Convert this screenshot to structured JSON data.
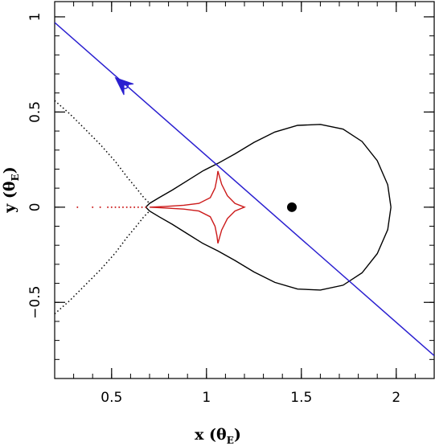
{
  "chart_data": {
    "type": "line",
    "xlabel": {
      "main": "x (θ",
      "sub": "E",
      "close": ")"
    },
    "ylabel": {
      "main": "y (θ",
      "sub": "E",
      "close": ")"
    },
    "xlim": [
      0.2,
      2.2
    ],
    "ylim": [
      -0.9,
      1.08
    ],
    "x_ticks": [
      {
        "value": 0.5,
        "label": "0.5"
      },
      {
        "value": 1,
        "label": "1"
      },
      {
        "value": 1.5,
        "label": "1.5"
      },
      {
        "value": 2,
        "label": "2"
      }
    ],
    "y_ticks": [
      {
        "value": -0.5,
        "label": "−0.5"
      },
      {
        "value": 0,
        "label": "0"
      },
      {
        "value": 0.5,
        "label": "0.5"
      },
      {
        "value": 1,
        "label": "1"
      }
    ],
    "x_minor_step": 0.1,
    "y_minor_step": 0.1,
    "source_trajectory": {
      "color": "#2a1fd0",
      "start": [
        0.2,
        0.97
      ],
      "end": [
        2.2,
        -0.78
      ],
      "marker_position": [
        0.57,
        0.64
      ],
      "arrow_tip": [
        0.52,
        0.68
      ]
    },
    "lens_point": {
      "x": 1.45,
      "y": 0.0,
      "color": "#000000"
    },
    "critical_curve": {
      "color": "#000000",
      "points": [
        [
          1.972,
          0.0
        ],
        [
          1.955,
          0.118
        ],
        [
          1.9,
          0.244
        ],
        [
          1.82,
          0.345
        ],
        [
          1.72,
          0.41
        ],
        [
          1.6,
          0.435
        ],
        [
          1.48,
          0.43
        ],
        [
          1.36,
          0.395
        ],
        [
          1.25,
          0.34
        ],
        [
          1.15,
          0.28
        ],
        [
          1.06,
          0.23
        ],
        [
          0.98,
          0.19
        ],
        [
          0.9,
          0.14
        ],
        [
          0.82,
          0.09
        ],
        [
          0.75,
          0.05
        ],
        [
          0.7,
          0.02
        ],
        [
          0.68,
          0.0
        ],
        [
          0.7,
          -0.02
        ],
        [
          0.75,
          -0.05
        ],
        [
          0.82,
          -0.09
        ],
        [
          0.9,
          -0.14
        ],
        [
          0.98,
          -0.19
        ],
        [
          1.06,
          -0.23
        ],
        [
          1.15,
          -0.28
        ],
        [
          1.25,
          -0.34
        ],
        [
          1.36,
          -0.395
        ],
        [
          1.48,
          -0.43
        ],
        [
          1.6,
          -0.435
        ],
        [
          1.72,
          -0.41
        ],
        [
          1.82,
          -0.345
        ],
        [
          1.9,
          -0.244
        ],
        [
          1.955,
          -0.118
        ],
        [
          1.972,
          0.0
        ]
      ],
      "outer_upper": [
        [
          0.2,
          0.56
        ],
        [
          0.28,
          0.49
        ],
        [
          0.36,
          0.41
        ],
        [
          0.44,
          0.33
        ],
        [
          0.52,
          0.24
        ],
        [
          0.58,
          0.16
        ],
        [
          0.63,
          0.1
        ],
        [
          0.67,
          0.05
        ],
        [
          0.7,
          0.02
        ]
      ],
      "outer_lower": [
        [
          0.2,
          -0.56
        ],
        [
          0.28,
          -0.49
        ],
        [
          0.36,
          -0.41
        ],
        [
          0.44,
          -0.33
        ],
        [
          0.52,
          -0.24
        ],
        [
          0.58,
          -0.16
        ],
        [
          0.63,
          -0.1
        ],
        [
          0.67,
          -0.05
        ],
        [
          0.7,
          -0.02
        ]
      ]
    },
    "caustic": {
      "color": "#cc1a1a",
      "points": [
        [
          1.06,
          0.19
        ],
        [
          1.08,
          0.12
        ],
        [
          1.11,
          0.06
        ],
        [
          1.15,
          0.02
        ],
        [
          1.2,
          0.0
        ],
        [
          1.15,
          -0.02
        ],
        [
          1.11,
          -0.06
        ],
        [
          1.08,
          -0.12
        ],
        [
          1.06,
          -0.19
        ],
        [
          1.055,
          -0.15
        ],
        [
          1.045,
          -0.1
        ],
        [
          1.02,
          -0.05
        ],
        [
          0.96,
          -0.02
        ],
        [
          0.88,
          -0.01
        ],
        [
          0.78,
          -0.004
        ],
        [
          0.7,
          0.0
        ],
        [
          0.78,
          0.004
        ],
        [
          0.88,
          0.01
        ],
        [
          0.96,
          0.02
        ],
        [
          1.02,
          0.05
        ],
        [
          1.045,
          0.1
        ],
        [
          1.055,
          0.15
        ],
        [
          1.06,
          0.19
        ]
      ],
      "dotted_tail": [
        0.32,
        0.4,
        0.44,
        0.48,
        0.5,
        0.52,
        0.54,
        0.56,
        0.58,
        0.6,
        0.62,
        0.64,
        0.66,
        0.68
      ]
    }
  }
}
